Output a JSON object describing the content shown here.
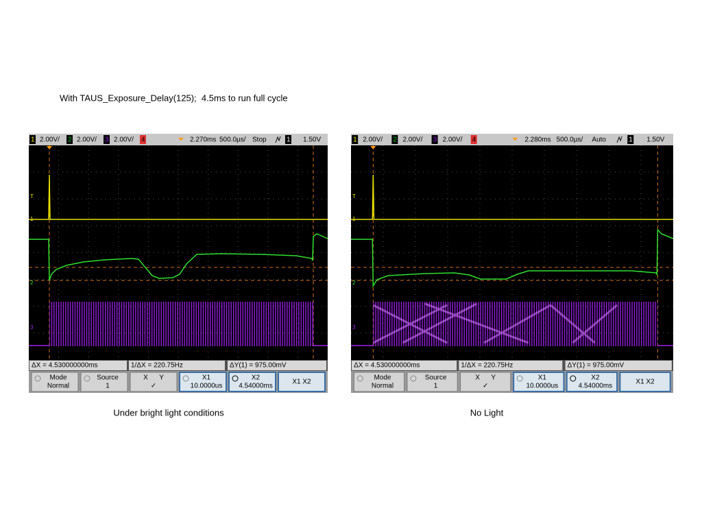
{
  "title": "With TAUS_Exposure_Delay(125);  4.5ms to run full cycle",
  "scopes": [
    {
      "header": {
        "ch1": "1",
        "ch1_scale": "2.00V/",
        "ch2": "2",
        "ch2_scale": "2.00V/",
        "ch3": "3",
        "ch3_scale": "2.00V/",
        "ch4": "4",
        "delay": "2.270ms",
        "timebase": "500.0µs/",
        "run_state": "Stop",
        "trigger_source": "1",
        "trigger_level": "1.50V"
      },
      "channel_markers": [
        "T",
        "1",
        "2",
        "3"
      ],
      "measurements": [
        "ΔX = 4.530000000ms",
        "1/ΔX = 220.75Hz",
        "ΔY(1) = 975.00mV"
      ],
      "softkeys": [
        {
          "label": "Mode",
          "value": "Normal"
        },
        {
          "label": "Source",
          "value": "1"
        },
        {
          "label": "X      Y",
          "value": "✓"
        },
        {
          "label": "X1",
          "value": "10.0000us"
        },
        {
          "label": "X2",
          "value": "4.54000ms"
        },
        {
          "label": "X1 X2"
        }
      ],
      "caption": "Under bright light conditions"
    },
    {
      "header": {
        "ch1": "1",
        "ch1_scale": "2.00V/",
        "ch2": "2",
        "ch2_scale": "2.00V/",
        "ch3": "3",
        "ch3_scale": "2.00V/",
        "ch4": "4",
        "delay": "2.280ms",
        "timebase": "500.0µs/",
        "run_state": "Auto",
        "trigger_source": "1",
        "trigger_level": "1.50V"
      },
      "channel_markers": [
        "T",
        "1",
        "2",
        "3"
      ],
      "measurements": [
        "ΔX = 4.530000000ms",
        "1/ΔX = 220.75Hz",
        "ΔY(1) = 975.00mV"
      ],
      "softkeys": [
        {
          "label": "Mode",
          "value": "Normal"
        },
        {
          "label": "Source",
          "value": "1"
        },
        {
          "label": "X      Y",
          "value": "✓"
        },
        {
          "label": "X1",
          "value": "10.0000us"
        },
        {
          "label": "X2",
          "value": "4.54000ms"
        },
        {
          "label": "X1 X2"
        }
      ],
      "caption": "No Light"
    }
  ]
}
